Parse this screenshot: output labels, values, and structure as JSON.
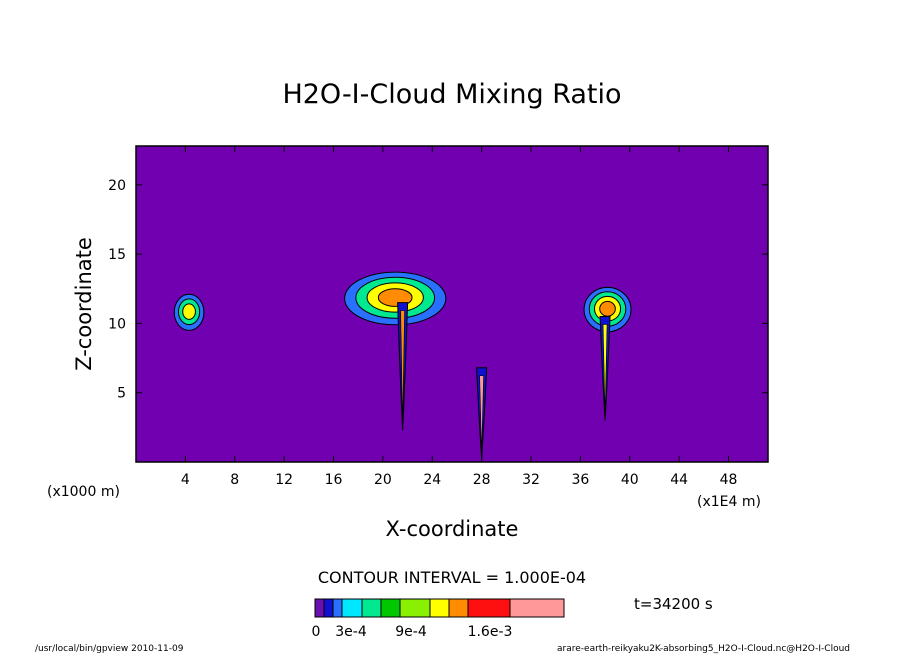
{
  "chart_data": {
    "type": "heatmap",
    "title": "H2O-I-Cloud Mixing Ratio",
    "xlabel": "X-coordinate",
    "ylabel": "Z-coordinate",
    "x_unit_left": "(x1000 m)",
    "x_unit_right": "(x1E4 m)",
    "x_ticks": [
      "4",
      "8",
      "12",
      "16",
      "20",
      "24",
      "28",
      "32",
      "36",
      "40",
      "44",
      "48"
    ],
    "y_ticks": [
      "5",
      "10",
      "15",
      "20"
    ],
    "xlim": [
      0,
      51.2
    ],
    "ylim": [
      0,
      22.8
    ],
    "contour_interval_text": "CONTOUR INTERVAL = 1.000E-04",
    "time_text": "t=34200 s",
    "colorbar_labels": [
      "0",
      "3e-4",
      "9e-4",
      "1.6e-3"
    ],
    "colorbar_colors": [
      "#6a0fb0",
      "#1010d0",
      "#2a70ff",
      "#00e8ff",
      "#00e890",
      "#00c800",
      "#88f000",
      "#ffff00",
      "#ff8c00",
      "#ff1010",
      "#ff9898"
    ],
    "background_color": "#7000b0",
    "footer_left": "/usr/local/bin/gpview  2010-11-09",
    "footer_right": "arare-earth-reikyaku2K-absorbing5_H2O-I-Cloud.nc@H2O-I-Cloud",
    "clouds": [
      {
        "x": 4.3,
        "z": 10.8,
        "rx": 1.2,
        "rz": 1.3,
        "levels": [
          0.0003,
          0.0006,
          0.0009
        ]
      },
      {
        "x": 21.0,
        "z": 11.8,
        "rx": 4.1,
        "rz": 1.9,
        "levels": [
          0.0003,
          0.0006,
          0.0009,
          0.0012
        ]
      },
      {
        "x": 38.2,
        "z": 11.0,
        "rx": 1.9,
        "rz": 1.6,
        "levels": [
          0.0003,
          0.0006,
          0.0009,
          0.0012
        ]
      }
    ],
    "columns": [
      {
        "x": 21.6,
        "z_bottom": 2.3,
        "z_top": 11.5,
        "peak": 0.0011
      },
      {
        "x": 28.0,
        "z_bottom": 0.2,
        "z_top": 6.8,
        "peak": 0.0016
      },
      {
        "x": 38.0,
        "z_bottom": 3.0,
        "z_top": 10.5,
        "peak": 0.0009
      }
    ],
    "grid": false
  }
}
